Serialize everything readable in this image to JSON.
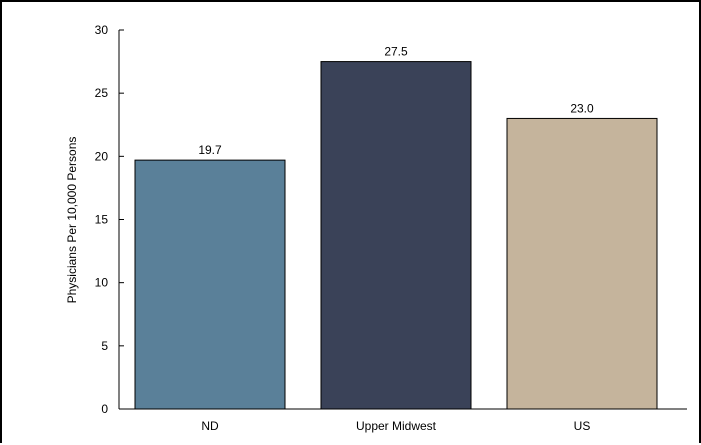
{
  "chart_data": {
    "type": "bar",
    "title": "",
    "xlabel": "",
    "ylabel": "Physicians Per 10,000 Persons",
    "categories": [
      "ND",
      "Upper Midwest",
      "US"
    ],
    "values": [
      19.7,
      27.5,
      23.0
    ],
    "value_labels": [
      "19.7",
      "27.5",
      "23.0"
    ],
    "ylim": [
      0,
      30
    ],
    "yticks": [
      0,
      5,
      10,
      15,
      20,
      25,
      30
    ],
    "grid": false,
    "colors": [
      "#5a8099",
      "#3a4258",
      "#c5b49c"
    ]
  }
}
